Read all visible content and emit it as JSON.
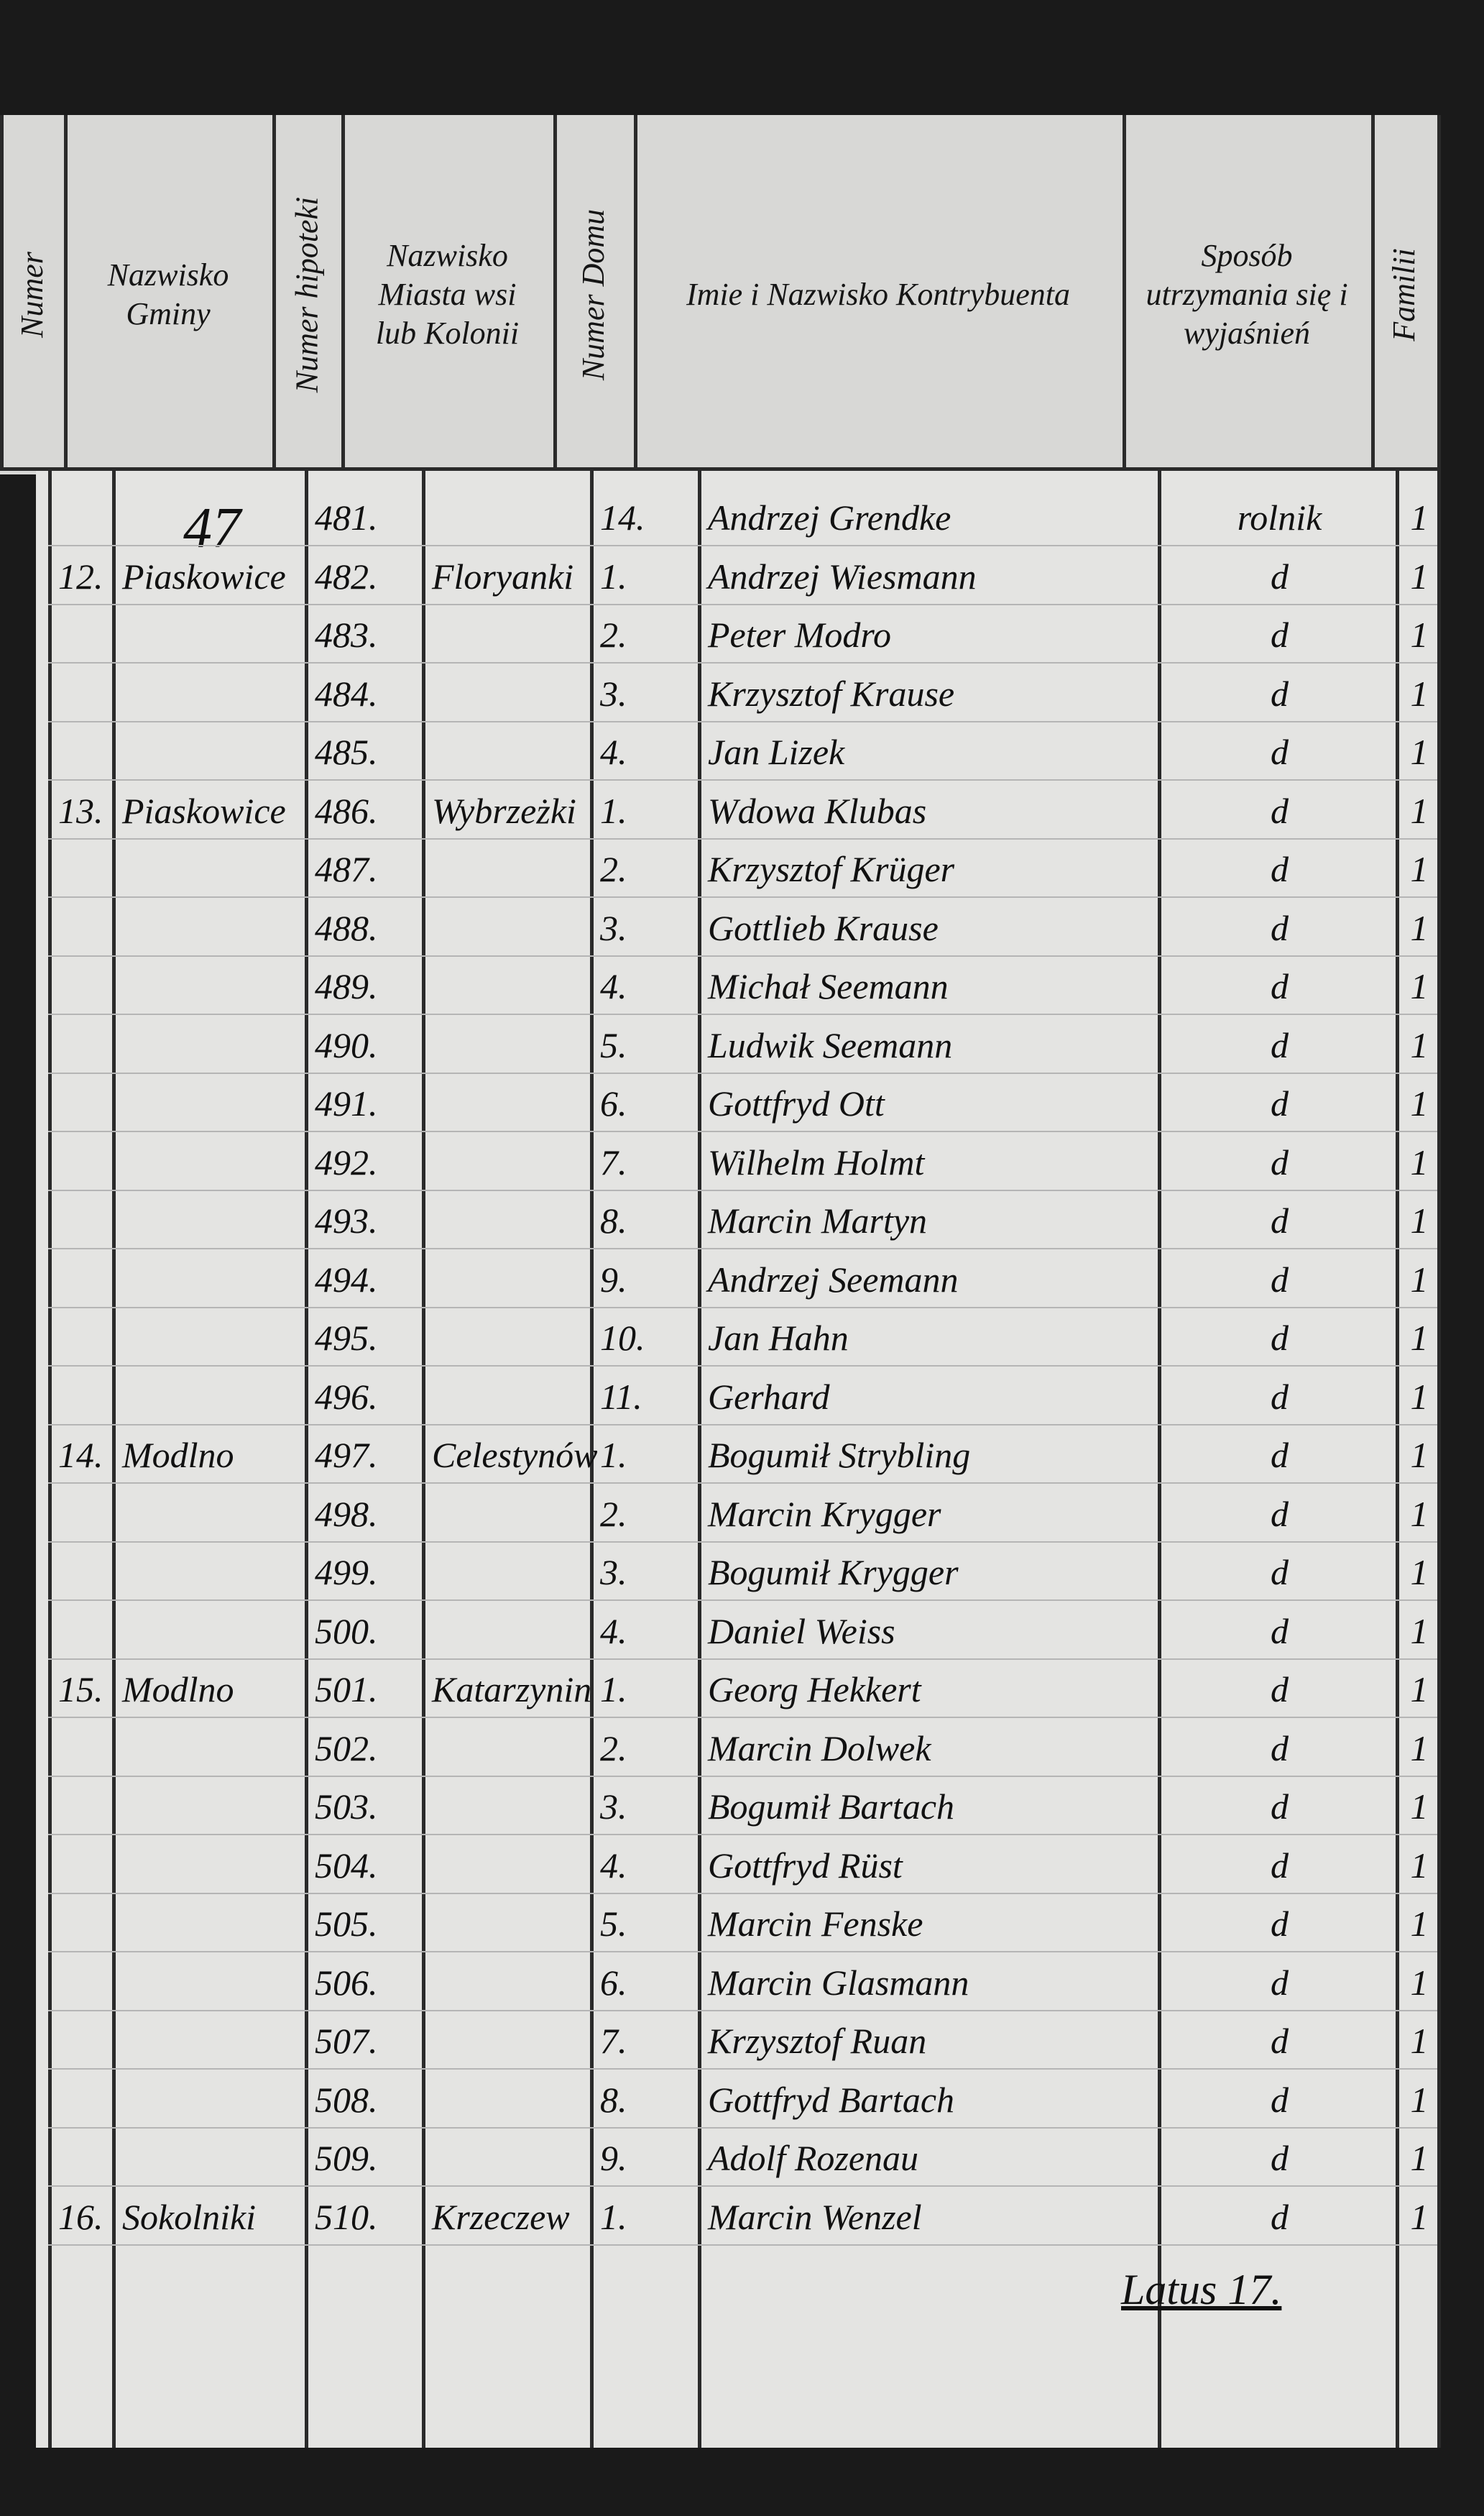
{
  "page_number": "47",
  "header": {
    "columns": [
      "Numer",
      "Nazwisko Gminy",
      "Numer hipoteki",
      "Nazwisko Miasta wsi lub Kolonii",
      "Numer Domu",
      "Imie i Nazwisko Kontrybuenta",
      "Sposób utrzymania się i wyjaśnień",
      "Familii"
    ]
  },
  "table": {
    "rows": [
      [
        null,
        null,
        "481.",
        null,
        "14.",
        "Andrzej Grendke",
        "rolnik",
        "1"
      ],
      [
        "12.",
        "Piaskowice",
        "482.",
        "Floryanki",
        "1.",
        "Andrzej Wiesmann",
        "d",
        "1"
      ],
      [
        null,
        null,
        "483.",
        null,
        "2.",
        "Peter Modro",
        "d",
        "1"
      ],
      [
        null,
        null,
        "484.",
        null,
        "3.",
        "Krzysztof Krause",
        "d",
        "1"
      ],
      [
        null,
        null,
        "485.",
        null,
        "4.",
        "Jan Lizek",
        "d",
        "1"
      ],
      [
        "13.",
        "Piaskowice",
        "486.",
        "Wybrzeżki",
        "1.",
        "Wdowa Klubas",
        "d",
        "1"
      ],
      [
        null,
        null,
        "487.",
        null,
        "2.",
        "Krzysztof Krüger",
        "d",
        "1"
      ],
      [
        null,
        null,
        "488.",
        null,
        "3.",
        "Gottlieb Krause",
        "d",
        "1"
      ],
      [
        null,
        null,
        "489.",
        null,
        "4.",
        "Michał Seemann",
        "d",
        "1"
      ],
      [
        null,
        null,
        "490.",
        null,
        "5.",
        "Ludwik Seemann",
        "d",
        "1"
      ],
      [
        null,
        null,
        "491.",
        null,
        "6.",
        "Gottfryd Ott",
        "d",
        "1"
      ],
      [
        null,
        null,
        "492.",
        null,
        "7.",
        "Wilhelm Holmt",
        "d",
        "1"
      ],
      [
        null,
        null,
        "493.",
        null,
        "8.",
        "Marcin Martyn",
        "d",
        "1"
      ],
      [
        null,
        null,
        "494.",
        null,
        "9.",
        "Andrzej Seemann",
        "d",
        "1"
      ],
      [
        null,
        null,
        "495.",
        null,
        "10.",
        "Jan Hahn",
        "d",
        "1"
      ],
      [
        null,
        null,
        "496.",
        null,
        "11.",
        "Gerhard",
        "d",
        "1"
      ],
      [
        "14.",
        "Modlno",
        "497.",
        "Celestynów",
        "1.",
        "Bogumił Strybling",
        "d",
        "1"
      ],
      [
        null,
        null,
        "498.",
        null,
        "2.",
        "Marcin Krygger",
        "d",
        "1"
      ],
      [
        null,
        null,
        "499.",
        null,
        "3.",
        "Bogumił Krygger",
        "d",
        "1"
      ],
      [
        null,
        null,
        "500.",
        null,
        "4.",
        "Daniel Weiss",
        "d",
        "1"
      ],
      [
        "15.",
        "Modlno",
        "501.",
        "Katarzynin",
        "1.",
        "Georg Hekkert",
        "d",
        "1"
      ],
      [
        null,
        null,
        "502.",
        null,
        "2.",
        "Marcin Dolwek",
        "d",
        "1"
      ],
      [
        null,
        null,
        "503.",
        null,
        "3.",
        "Bogumił Bartach",
        "d",
        "1"
      ],
      [
        null,
        null,
        "504.",
        null,
        "4.",
        "Gottfryd Rüst",
        "d",
        "1"
      ],
      [
        null,
        null,
        "505.",
        null,
        "5.",
        "Marcin Fenske",
        "d",
        "1"
      ],
      [
        null,
        null,
        "506.",
        null,
        "6.",
        "Marcin Glasmann",
        "d",
        "1"
      ],
      [
        null,
        null,
        "507.",
        null,
        "7.",
        "Krzysztof Ruan",
        "d",
        "1"
      ],
      [
        null,
        null,
        "508.",
        null,
        "8.",
        "Gottfryd Bartach",
        "d",
        "1"
      ],
      [
        null,
        null,
        "509.",
        null,
        "9.",
        "Adolf Rozenau",
        "d",
        "1"
      ],
      [
        "16.",
        "Sokolniki",
        "510.",
        "Krzeczew",
        "1.",
        "Marcin Wenzel",
        "d",
        "1"
      ]
    ]
  },
  "footer": {
    "total": "Latus 17."
  }
}
